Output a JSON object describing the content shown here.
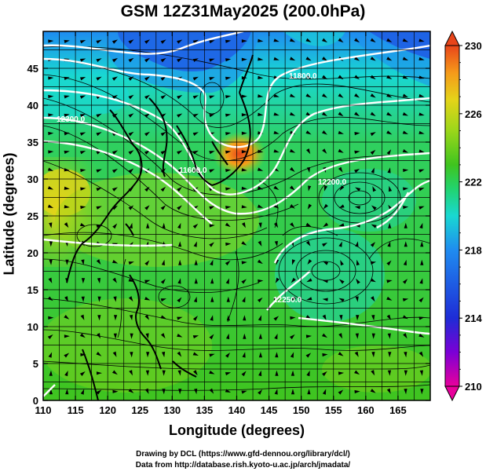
{
  "title": "GSM 12Z31May2025 (200.0hPa)",
  "xaxis": {
    "label": "Longitude (degrees)",
    "range": [
      110,
      170
    ],
    "ticks": [
      "110",
      "115",
      "120",
      "125",
      "130",
      "135",
      "140",
      "145",
      "150",
      "155",
      "160",
      "165"
    ]
  },
  "yaxis": {
    "label": "Latitude  (degrees)",
    "range": [
      0,
      50
    ],
    "ticks": [
      "0",
      "5",
      "10",
      "15",
      "20",
      "25",
      "30",
      "35",
      "40",
      "45"
    ]
  },
  "colorbar": {
    "range": [
      210,
      230
    ],
    "ticks": [
      "210",
      "214",
      "218",
      "222",
      "226",
      "230"
    ],
    "colors": [
      "#e8009c",
      "#7b00d6",
      "#1e2cd6",
      "#1f8cf0",
      "#19d8d2",
      "#22d36e",
      "#3fc41f",
      "#9bd61a",
      "#e4d419",
      "#f59a1a",
      "#e8451a"
    ]
  },
  "contour_labels": [
    "12300.0",
    "11600.0",
    "11800.0",
    "12200.0",
    "12250.0"
  ],
  "credits": {
    "line1": "Drawing by DCL (https://www.gfd-dennou.org/library/dcl/)",
    "line2": "Data from http://database.rish.kyoto-u.ac.jp/arch/jmadata/"
  },
  "chart_data": {
    "type": "heatmap",
    "variable": "temperature",
    "level": "200.0hPa",
    "xlim": [
      110,
      170
    ],
    "ylim": [
      0,
      50
    ],
    "value_range": [
      210,
      230
    ],
    "features": [
      {
        "kind": "warm maximum",
        "lon": 140,
        "lat": 36,
        "value": 227
      },
      {
        "kind": "cold region",
        "lon": 125,
        "lat": 48,
        "value": 214
      },
      {
        "kind": "cold region",
        "lon": 165,
        "lat": 48,
        "value": 214
      },
      {
        "kind": "anticyclone center",
        "lon": 153,
        "lat": 20
      },
      {
        "kind": "anticyclone center",
        "lon": 158,
        "lat": 30
      }
    ]
  }
}
